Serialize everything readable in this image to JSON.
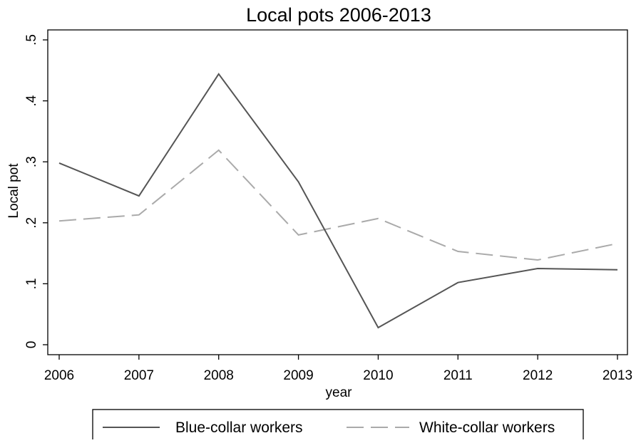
{
  "chart_data": {
    "type": "line",
    "title": "Local pots 2006-2013",
    "xlabel": "year",
    "ylabel": "Local pot",
    "x": [
      2006,
      2007,
      2008,
      2009,
      2010,
      2011,
      2012,
      2013
    ],
    "x_tick_labels": [
      "2006",
      "2007",
      "2008",
      "2009",
      "2010",
      "2011",
      "2012",
      "2013"
    ],
    "xlim": [
      2006,
      2013
    ],
    "ylim": [
      0,
      0.5
    ],
    "y_ticks": [
      0,
      0.1,
      0.2,
      0.3,
      0.4,
      0.5
    ],
    "y_tick_labels": [
      "0",
      ".1",
      ".2",
      ".3",
      ".4",
      ".5"
    ],
    "grid": false,
    "legend_position": "bottom",
    "series": [
      {
        "name": "Blue-collar workers",
        "style": "solid",
        "color": "#555555",
        "values": [
          0.298,
          0.244,
          0.444,
          0.267,
          0.028,
          0.102,
          0.125,
          0.123
        ]
      },
      {
        "name": "White-collar workers",
        "style": "dashed",
        "color": "#aaaaaa",
        "values": [
          0.203,
          0.213,
          0.319,
          0.18,
          0.207,
          0.153,
          0.139,
          0.166
        ]
      }
    ]
  }
}
